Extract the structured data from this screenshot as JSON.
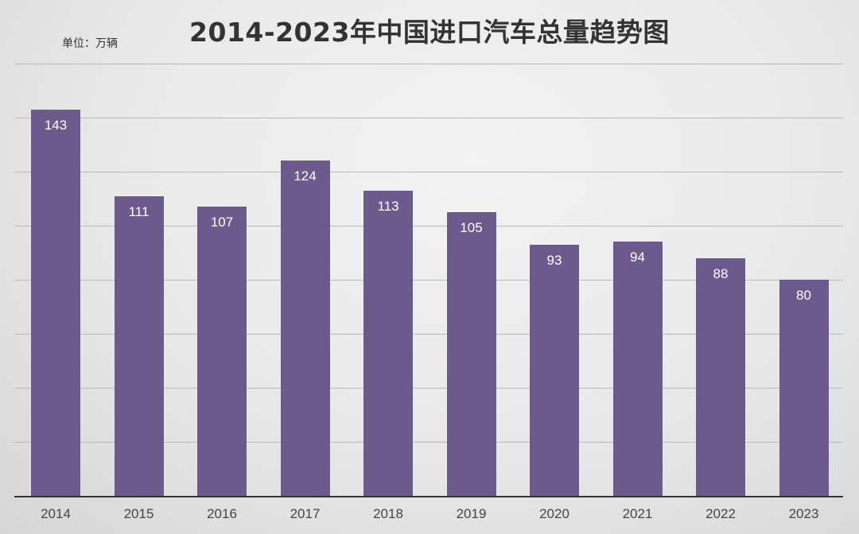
{
  "chart_data": {
    "type": "bar",
    "title": "2014-2023年中国进口汽车总量趋势图",
    "unit_label": "单位：万辆",
    "xlabel": "",
    "ylabel": "万辆",
    "categories": [
      "2014",
      "2015",
      "2016",
      "2017",
      "2018",
      "2019",
      "2020",
      "2021",
      "2022",
      "2023"
    ],
    "values": [
      143,
      111,
      107,
      124,
      113,
      105,
      93,
      94,
      88,
      80
    ],
    "ylim": [
      0,
      160
    ],
    "gridlines": [
      20,
      40,
      60,
      80,
      100,
      120,
      140,
      160
    ],
    "grid": true,
    "data_labels": true,
    "legend": "none",
    "bar_color": "#6d5a8c"
  }
}
